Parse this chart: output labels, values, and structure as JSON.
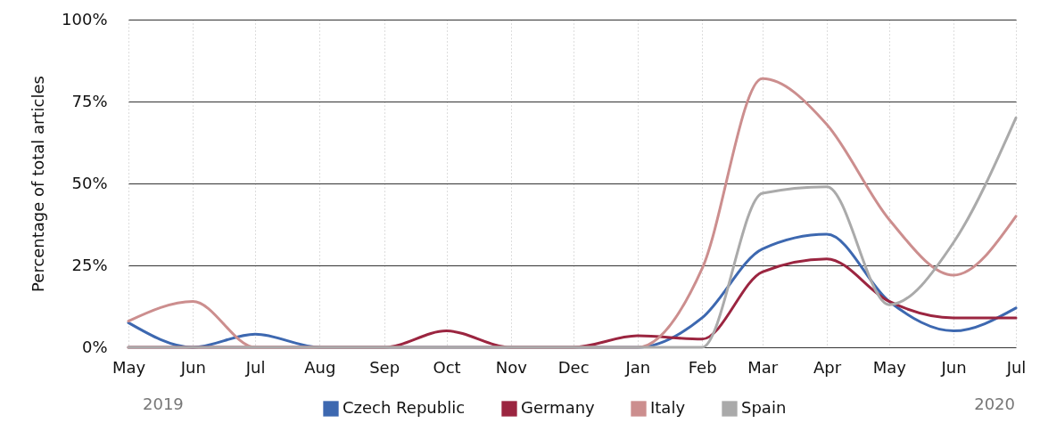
{
  "chart_data": {
    "type": "line",
    "ylabel": "Percentage of total articles",
    "x": [
      "2019-05",
      "2019-06",
      "2019-07",
      "2019-08",
      "2019-09",
      "2019-10",
      "2019-11",
      "2019-12",
      "2020-01",
      "2020-02",
      "2020-03",
      "2020-04",
      "2020-05",
      "2020-06",
      "2020-07"
    ],
    "series": [
      {
        "name": "Czech Republic",
        "color": "#3d68b0",
        "values": [
          7.5,
          0,
          4,
          0,
          0,
          0,
          0,
          0,
          0,
          9,
          30,
          34.5,
          14,
          5,
          12
        ]
      },
      {
        "name": "Germany",
        "color": "#9b2540",
        "values": [
          0,
          0,
          0,
          0,
          0,
          5,
          0,
          0,
          3.5,
          2.5,
          23,
          27,
          14,
          9,
          9
        ]
      },
      {
        "name": "Italy",
        "color": "#cc8e8e",
        "values": [
          8,
          14,
          0,
          0,
          0,
          0,
          0,
          0,
          0,
          24,
          82,
          68,
          39,
          22,
          40
        ]
      },
      {
        "name": "Spain",
        "color": "#aaaaaa",
        "values": [
          0,
          0,
          0,
          0,
          0,
          0,
          0,
          0,
          0,
          0,
          47,
          49,
          13,
          32,
          70
        ]
      }
    ],
    "xlim": [
      "2019-05",
      "2020-07"
    ],
    "xticks": [
      {
        "value": "2019-05",
        "label": "May"
      },
      {
        "value": "2019-06",
        "label": "Jun"
      },
      {
        "value": "2019-07",
        "label": "Jul"
      },
      {
        "value": "2019-08",
        "label": "Aug"
      },
      {
        "value": "2019-09",
        "label": "Sep"
      },
      {
        "value": "2019-10",
        "label": "Oct"
      },
      {
        "value": "2019-11",
        "label": "Nov"
      },
      {
        "value": "2019-12",
        "label": "Dec"
      },
      {
        "value": "2020-01",
        "label": "Jan"
      },
      {
        "value": "2020-02",
        "label": "Feb"
      },
      {
        "value": "2020-03",
        "label": "Mar"
      },
      {
        "value": "2020-04",
        "label": "Apr"
      },
      {
        "value": "2020-05",
        "label": "May"
      },
      {
        "value": "2020-06",
        "label": "Jun"
      },
      {
        "value": "2020-07",
        "label": "Jul"
      }
    ],
    "ylim": [
      0,
      100
    ],
    "yticks": [
      {
        "value": 0,
        "label": "0%"
      },
      {
        "value": 25,
        "label": "25%"
      },
      {
        "value": 50,
        "label": "50%"
      },
      {
        "value": 75,
        "label": "75%"
      },
      {
        "value": 100,
        "label": "100%"
      }
    ],
    "annotations": [
      "2019",
      "2020"
    ],
    "grid": true,
    "legend": "bottom",
    "marker": "none",
    "line_style": "solid"
  }
}
